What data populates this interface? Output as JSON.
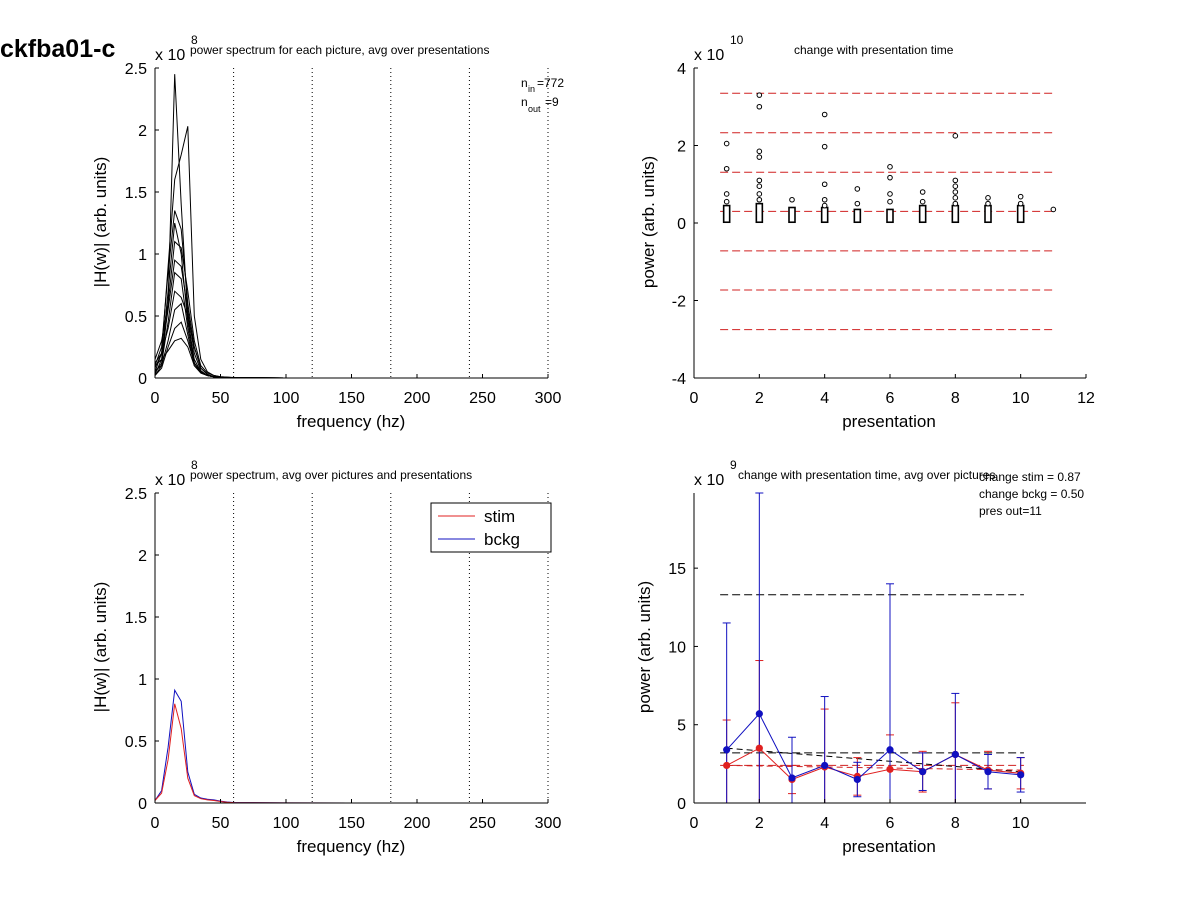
{
  "figure_label": "ckfba01-c",
  "chart_data": [
    {
      "id": "tl",
      "type": "line",
      "title": "power spectrum for each picture, avg over presentations",
      "xlabel": "frequency (hz)",
      "ylabel": "|H(w)| (arb. units)",
      "xlim": [
        0,
        300
      ],
      "ylim": [
        0,
        2.5
      ],
      "multiplier": "x 10",
      "multiplier_exp": "8",
      "xticks": [
        "0",
        "50",
        "100",
        "150",
        "200",
        "250",
        "300"
      ],
      "yticks": [
        "0",
        "0.5",
        "1",
        "1.5",
        "2",
        "2.5"
      ],
      "vlines": [
        60,
        120,
        180,
        240,
        300
      ],
      "n_in": "=772",
      "n_out": "=9",
      "x": [
        0,
        5,
        10,
        15,
        20,
        25,
        30,
        35,
        40,
        45,
        50,
        60,
        80,
        100,
        150,
        200,
        250,
        300
      ],
      "series": [
        {
          "values": [
            0.02,
            0.1,
            0.6,
            2.45,
            1.4,
            0.5,
            0.12,
            0.04,
            0.02,
            0.01,
            0.005,
            0.002,
            0.001,
            0,
            0,
            0,
            0,
            0
          ]
        },
        {
          "values": [
            0.05,
            0.2,
            0.9,
            1.6,
            1.8,
            2.03,
            0.5,
            0.15,
            0.05,
            0.02,
            0.01,
            0.004,
            0.002,
            0,
            0,
            0,
            0,
            0
          ]
        },
        {
          "values": [
            0.1,
            0.25,
            0.85,
            1.35,
            1.2,
            0.6,
            0.25,
            0.08,
            0.03,
            0.01,
            0.005,
            0.002,
            0.001,
            0,
            0,
            0,
            0,
            0
          ]
        },
        {
          "values": [
            0.03,
            0.15,
            0.7,
            1.25,
            1.0,
            0.45,
            0.15,
            0.05,
            0.02,
            0.01,
            0.004,
            0.002,
            0.001,
            0,
            0,
            0,
            0,
            0
          ]
        },
        {
          "values": [
            0.15,
            0.3,
            0.6,
            1.1,
            1.05,
            0.7,
            0.3,
            0.1,
            0.04,
            0.02,
            0.01,
            0.003,
            0.001,
            0,
            0,
            0,
            0,
            0
          ]
        },
        {
          "values": [
            0.08,
            0.2,
            0.55,
            0.95,
            0.9,
            0.55,
            0.2,
            0.06,
            0.02,
            0.01,
            0.004,
            0.002,
            0.001,
            0,
            0,
            0,
            0,
            0
          ]
        },
        {
          "values": [
            0.04,
            0.12,
            0.45,
            0.85,
            0.8,
            0.4,
            0.12,
            0.05,
            0.02,
            0.01,
            0.004,
            0.002,
            0.001,
            0,
            0,
            0,
            0,
            0
          ]
        },
        {
          "values": [
            0.12,
            0.2,
            0.4,
            0.7,
            0.65,
            0.5,
            0.25,
            0.08,
            0.03,
            0.01,
            0.005,
            0.002,
            0.001,
            0,
            0,
            0,
            0,
            0
          ]
        },
        {
          "values": [
            0.06,
            0.1,
            0.3,
            0.55,
            0.6,
            0.35,
            0.1,
            0.04,
            0.02,
            0.01,
            0.004,
            0.002,
            0.001,
            0,
            0,
            0,
            0,
            0
          ]
        },
        {
          "values": [
            0.02,
            0.08,
            0.25,
            0.4,
            0.45,
            0.3,
            0.12,
            0.05,
            0.02,
            0.01,
            0.004,
            0.002,
            0.001,
            0,
            0,
            0,
            0,
            0
          ]
        },
        {
          "values": [
            0.1,
            0.15,
            0.22,
            0.3,
            0.32,
            0.25,
            0.1,
            0.04,
            0.02,
            0.01,
            0.004,
            0.002,
            0.001,
            0,
            0,
            0,
            0,
            0
          ]
        }
      ]
    },
    {
      "id": "tr",
      "type": "scatter",
      "title": "change with presentation time",
      "xlabel": "presentation",
      "ylabel": "power (arb. units)",
      "xlim": [
        0,
        12
      ],
      "ylim": [
        -4,
        4
      ],
      "multiplier": "x 10",
      "multiplier_exp": "10",
      "xticks": [
        "0",
        "2",
        "4",
        "6",
        "8",
        "10",
        "12"
      ],
      "yticks": [
        "-4",
        "-2",
        "0",
        "2",
        "4"
      ],
      "hlines": [
        3.35,
        2.33,
        1.31,
        0.3,
        -0.72,
        -1.73,
        -2.75
      ],
      "points": [
        [
          1,
          2.05
        ],
        [
          1,
          1.4
        ],
        [
          1,
          0.75
        ],
        [
          1,
          0.55
        ],
        [
          2,
          3.3
        ],
        [
          2,
          3.0
        ],
        [
          2,
          1.85
        ],
        [
          2,
          1.7
        ],
        [
          2,
          1.1
        ],
        [
          2,
          0.95
        ],
        [
          2,
          0.75
        ],
        [
          2,
          0.6
        ],
        [
          3,
          0.6
        ],
        [
          4,
          2.8
        ],
        [
          4,
          1.97
        ],
        [
          4,
          1.0
        ],
        [
          4,
          0.6
        ],
        [
          4,
          0.45
        ],
        [
          5,
          0.88
        ],
        [
          5,
          0.5
        ],
        [
          6,
          1.45
        ],
        [
          6,
          1.17
        ],
        [
          6,
          0.75
        ],
        [
          6,
          0.55
        ],
        [
          7,
          0.8
        ],
        [
          7,
          0.55
        ],
        [
          8,
          2.25
        ],
        [
          8,
          1.1
        ],
        [
          8,
          0.95
        ],
        [
          8,
          0.8
        ],
        [
          8,
          0.65
        ],
        [
          8,
          0.5
        ],
        [
          9,
          0.65
        ],
        [
          9,
          0.5
        ],
        [
          10,
          0.68
        ],
        [
          10,
          0.5
        ],
        [
          11,
          0.35
        ]
      ],
      "cluster_top": [
        0.45,
        0.5,
        0.4,
        0.4,
        0.35,
        0.35,
        0.45,
        0.45,
        0.45,
        0.45
      ],
      "cluster_bottom": 0.02
    },
    {
      "id": "bl",
      "type": "line",
      "title": "power spectrum, avg over pictures and presentations",
      "xlabel": "frequency (hz)",
      "ylabel": "|H(w)| (arb. units)",
      "xlim": [
        0,
        300
      ],
      "ylim": [
        0,
        2.5
      ],
      "multiplier": "x 10",
      "multiplier_exp": "8",
      "xticks": [
        "0",
        "50",
        "100",
        "150",
        "200",
        "250",
        "300"
      ],
      "yticks": [
        "0",
        "0.5",
        "1",
        "1.5",
        "2",
        "2.5"
      ],
      "vlines": [
        60,
        120,
        180,
        240,
        300
      ],
      "legend_position": "top-right",
      "x": [
        0,
        5,
        10,
        15,
        20,
        25,
        30,
        35,
        40,
        45,
        50,
        55,
        60,
        100,
        150,
        200,
        250,
        300
      ],
      "series": [
        {
          "name": "stim",
          "color": "#e02020",
          "values": [
            0.02,
            0.08,
            0.35,
            0.8,
            0.6,
            0.2,
            0.06,
            0.035,
            0.025,
            0.02,
            0.012,
            0.006,
            0.003,
            0.001,
            0,
            0,
            0,
            0
          ]
        },
        {
          "name": "bckg",
          "color": "#1010c0",
          "values": [
            0.02,
            0.1,
            0.45,
            0.91,
            0.82,
            0.25,
            0.07,
            0.04,
            0.03,
            0.025,
            0.015,
            0.008,
            0.004,
            0.001,
            0,
            0,
            0,
            0
          ]
        }
      ]
    },
    {
      "id": "br",
      "type": "line",
      "title": "change with presentation time, avg over pictures",
      "xlabel": "presentation",
      "ylabel": "power (arb. units)",
      "xlim": [
        0,
        12
      ],
      "ylim": [
        0,
        19.8
      ],
      "multiplier": "x 10",
      "multiplier_exp": "9",
      "xticks": [
        "0",
        "2",
        "4",
        "6",
        "8",
        "10"
      ],
      "yticks": [
        "0",
        "5",
        "10",
        "15"
      ],
      "annotations": [
        "change stim = 0.87",
        "change bckg = 0.50",
        "pres out=11"
      ],
      "hlines_black": [
        13.3,
        3.2
      ],
      "hline_red": 2.4,
      "trend_bckg": [
        [
          1,
          3.5
        ],
        [
          10,
          2.0
        ]
      ],
      "trend_stim": [
        [
          1,
          2.4
        ],
        [
          10,
          2.1
        ]
      ],
      "series": [
        {
          "name": "stim",
          "color": "#e02020",
          "x": [
            1,
            2,
            3,
            4,
            5,
            6,
            7,
            8,
            9,
            10
          ],
          "values": [
            2.4,
            3.5,
            1.5,
            2.3,
            1.7,
            2.15,
            2.0,
            3.1,
            2.1,
            1.9
          ],
          "err": [
            2.9,
            5.6,
            0.9,
            3.7,
            1.2,
            2.2,
            1.3,
            3.3,
            1.2,
            1.0
          ]
        },
        {
          "name": "bckg",
          "color": "#1010c0",
          "x": [
            1,
            2,
            3,
            4,
            5,
            6,
            7,
            8,
            9,
            10
          ],
          "values": [
            3.4,
            5.7,
            1.6,
            2.4,
            1.5,
            3.4,
            2.0,
            3.1,
            2.0,
            1.8
          ],
          "err": [
            8.1,
            15.3,
            2.6,
            4.4,
            1.1,
            10.6,
            1.2,
            3.9,
            1.1,
            1.1
          ]
        }
      ]
    }
  ]
}
